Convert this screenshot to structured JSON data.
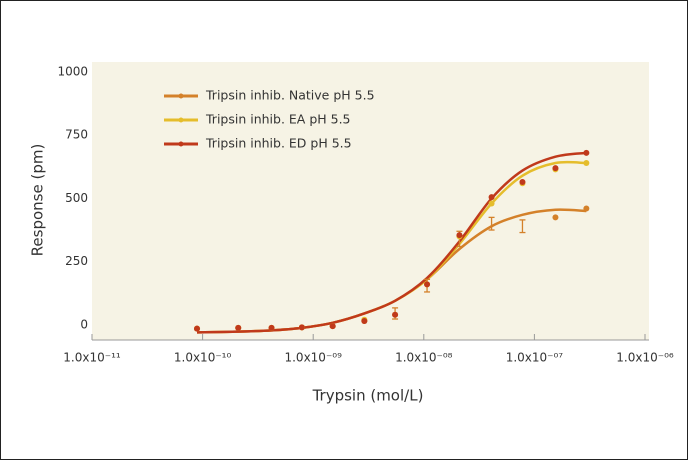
{
  "chart_data": {
    "type": "scatter",
    "xlabel": "Trypsin (mol/L)",
    "ylabel": "Response (pm)",
    "xscale": "log",
    "xlim": [
      1e-11,
      1e-06
    ],
    "xticks": [
      {
        "value": 1e-11,
        "label": "1.0x10⁻¹¹"
      },
      {
        "value": 1e-10,
        "label": "1.0x10⁻¹⁰"
      },
      {
        "value": 1e-09,
        "label": "1.0x10⁻⁰⁹"
      },
      {
        "value": 1e-08,
        "label": "1.0x10⁻⁰⁸"
      },
      {
        "value": 1e-07,
        "label": "1.0x10⁻⁰⁷"
      },
      {
        "value": 1e-06,
        "label": "1.0x10⁻⁰⁶"
      }
    ],
    "ylim": [
      -60,
      1000
    ],
    "yticks": [
      0,
      250,
      500,
      750,
      1000
    ],
    "legend": "upper left",
    "x": [
      8.9e-11,
      2.1e-10,
      4.2e-10,
      7.9e-10,
      1.5e-09,
      2.9e-09,
      5.5e-09,
      1.07e-08,
      2.1e-08,
      4.1e-08,
      7.8e-08,
      1.55e-07,
      2.95e-07
    ],
    "series": [
      {
        "name": "Tripsin inhib. Native pH 5.5",
        "color": "#d4812a",
        "values": [
          -15,
          -12,
          -12,
          -10,
          -5,
          15,
          45,
          155,
          340,
          400,
          390,
          425,
          460
        ],
        "errors": [
          null,
          null,
          null,
          null,
          null,
          null,
          22,
          25,
          30,
          25,
          25,
          null,
          null
        ],
        "fit": [
          -30,
          -27,
          -22,
          -12,
          8,
          45,
          95,
          180,
          300,
          390,
          435,
          455,
          450
        ]
      },
      {
        "name": "Tripsin inhib. EA pH 5.5",
        "color": "#e5bd2c",
        "values": [
          -15,
          -12,
          -12,
          -10,
          -5,
          20,
          40,
          160,
          350,
          480,
          560,
          615,
          640
        ],
        "fit": [
          -30,
          -27,
          -22,
          -12,
          8,
          45,
          95,
          180,
          320,
          480,
          590,
          640,
          640
        ]
      },
      {
        "name": "Tripsin inhib. ED pH 5.5",
        "color": "#c0391b",
        "values": [
          -15,
          -12,
          -12,
          -10,
          -5,
          15,
          40,
          160,
          355,
          505,
          565,
          620,
          680
        ],
        "fit": [
          -30,
          -27,
          -22,
          -12,
          8,
          45,
          95,
          185,
          330,
          500,
          610,
          665,
          680
        ]
      }
    ]
  }
}
